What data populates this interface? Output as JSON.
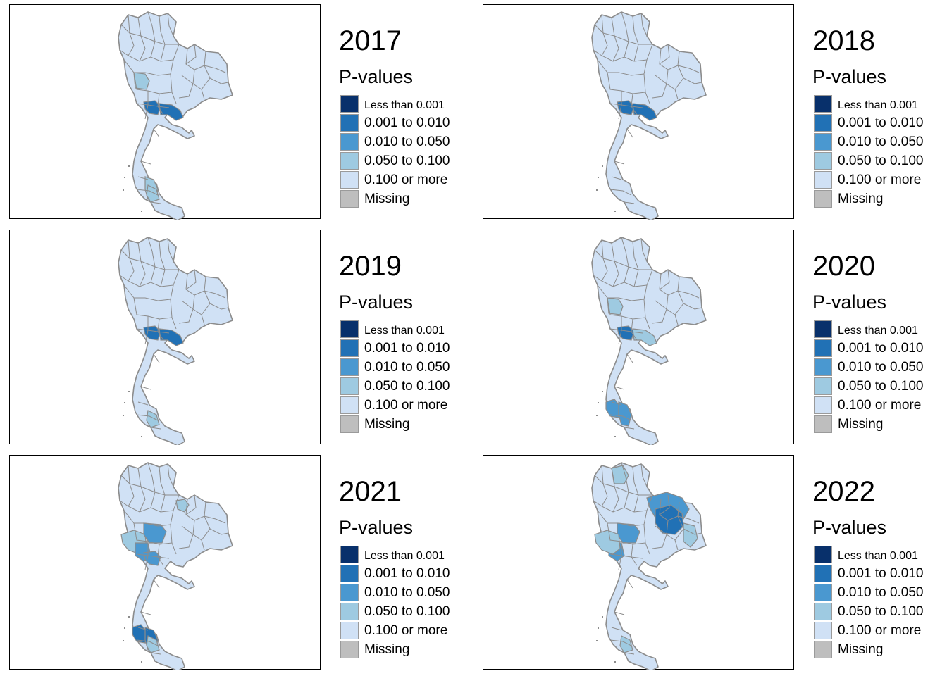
{
  "legend_title": "P-values",
  "legend": [
    {
      "label": "Less than 0.001",
      "color": "#08306b"
    },
    {
      "label": "0.001 to 0.010",
      "color": "#2171b5"
    },
    {
      "label": "0.010 to 0.050",
      "color": "#4a98d0"
    },
    {
      "label": "0.050 to 0.100",
      "color": "#9ecae1"
    },
    {
      "label": "0.100 or more",
      "color": "#d0e1f5"
    },
    {
      "label": "Missing",
      "color": "#bebebe"
    }
  ],
  "map_style": {
    "base_fill": "#d0e1f5",
    "border_color": "#8c8c8c"
  },
  "panels": [
    {
      "year": "2017",
      "highlights": [
        {
          "region": "upper-central",
          "color": "#9ecae1"
        },
        {
          "region": "bangkok-west",
          "color": "#2171b5"
        },
        {
          "region": "bangkok-east",
          "color": "#2171b5"
        },
        {
          "region": "south-east",
          "color": "#9ecae1"
        },
        {
          "region": "south-mid",
          "color": "#9ecae1"
        }
      ]
    },
    {
      "year": "2018",
      "highlights": [
        {
          "region": "bangkok-west",
          "color": "#2171b5"
        },
        {
          "region": "bangkok-east",
          "color": "#2171b5"
        }
      ]
    },
    {
      "year": "2019",
      "highlights": [
        {
          "region": "bangkok-west",
          "color": "#2171b5"
        },
        {
          "region": "bangkok-east",
          "color": "#2171b5"
        },
        {
          "region": "south-mid",
          "color": "#9ecae1"
        }
      ]
    },
    {
      "year": "2020",
      "highlights": [
        {
          "region": "upper-central",
          "color": "#9ecae1"
        },
        {
          "region": "bangkok-west",
          "color": "#2171b5"
        },
        {
          "region": "bangkok-east",
          "color": "#9ecae1"
        },
        {
          "region": "south-west",
          "color": "#4a98d0"
        },
        {
          "region": "south-east",
          "color": "#4a98d0"
        }
      ]
    },
    {
      "year": "2021",
      "highlights": [
        {
          "region": "west-central",
          "color": "#9ecae1"
        },
        {
          "region": "central-north",
          "color": "#4a98d0"
        },
        {
          "region": "central-west",
          "color": "#4a98d0"
        },
        {
          "region": "bangkok-west",
          "color": "#4a98d0"
        },
        {
          "region": "south-west",
          "color": "#2171b5"
        },
        {
          "region": "south-east",
          "color": "#2171b5"
        },
        {
          "region": "south-mid",
          "color": "#9ecae1"
        },
        {
          "region": "north-east-spot",
          "color": "#9ecae1"
        }
      ]
    },
    {
      "year": "2022",
      "highlights": [
        {
          "region": "north-top",
          "color": "#9ecae1"
        },
        {
          "region": "isan-north",
          "color": "#4a98d0"
        },
        {
          "region": "isan-core",
          "color": "#2171b5"
        },
        {
          "region": "isan-east",
          "color": "#9ecae1"
        },
        {
          "region": "central-west",
          "color": "#4a98d0"
        },
        {
          "region": "central-north",
          "color": "#4a98d0"
        },
        {
          "region": "west-central",
          "color": "#9ecae1"
        },
        {
          "region": "south-mid",
          "color": "#9ecae1"
        }
      ]
    }
  ]
}
